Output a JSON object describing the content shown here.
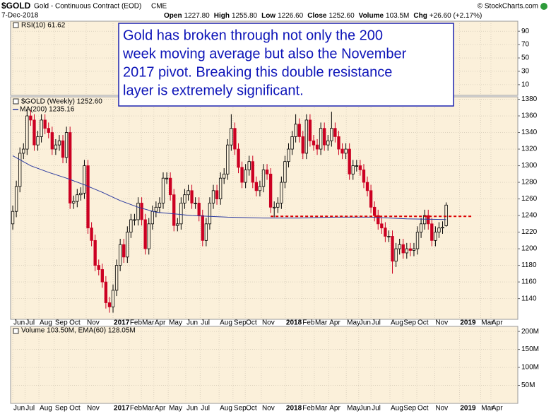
{
  "header": {
    "symbol": "$GOLD",
    "name": "Gold - Continuous Contract (EOD)",
    "exchange": "CME",
    "date": "7-Dec-2018",
    "quote": [
      {
        "label": "Open",
        "value": "1227.80"
      },
      {
        "label": "High",
        "value": "1255.80"
      },
      {
        "label": "Low",
        "value": "1226.60"
      },
      {
        "label": "Close",
        "value": "1252.60"
      },
      {
        "label": "Volume",
        "value": "103.5M"
      },
      {
        "label": "Chg",
        "value": "+26.60 (+2.17%)"
      }
    ],
    "credit": "© StockCharts.com"
  },
  "chart_data": [
    {
      "type": "indicator",
      "label": "RSI(10) 61.62",
      "ylim": [
        -6,
        105
      ],
      "yticks": [
        90,
        70,
        50,
        30,
        10
      ]
    },
    {
      "type": "candlestick",
      "legend": "$GOLD (Weekly) 1252.60",
      "up_color": "#000000",
      "down_color": "#cc0022",
      "grid": true,
      "ylim": [
        1115,
        1383
      ],
      "yticks": [
        1380,
        1360,
        1340,
        1320,
        1300,
        1280,
        1260,
        1240,
        1220,
        1200,
        1180,
        1160,
        1140
      ],
      "xlim": [
        -0.6,
        141
      ],
      "xticks": [
        {
          "value": 0,
          "label": "Jun"
        },
        {
          "value": 3.4,
          "label": "Jul"
        },
        {
          "value": 7.3,
          "label": "Aug"
        },
        {
          "value": 11.6,
          "label": "Sep"
        },
        {
          "value": 15.6,
          "label": "Oct"
        },
        {
          "value": 20.5,
          "label": "Nov"
        },
        {
          "value": 28,
          "label": "2017"
        },
        {
          "value": 32.5,
          "label": "Feb"
        },
        {
          "value": 35.9,
          "label": "Mar"
        },
        {
          "value": 39.4,
          "label": "Apr"
        },
        {
          "value": 43.4,
          "label": "May"
        },
        {
          "value": 48.3,
          "label": "Jun"
        },
        {
          "value": 52.3,
          "label": "Jul"
        },
        {
          "value": 57.6,
          "label": "Aug"
        },
        {
          "value": 61.5,
          "label": "Sep"
        },
        {
          "value": 64.9,
          "label": "Oct"
        },
        {
          "value": 69.4,
          "label": "Nov"
        },
        {
          "value": 76.1,
          "label": "2018"
        },
        {
          "value": 80.7,
          "label": "Feb"
        },
        {
          "value": 84.2,
          "label": "Mar"
        },
        {
          "value": 88.2,
          "label": "Apr"
        },
        {
          "value": 93.1,
          "label": "May"
        },
        {
          "value": 96.6,
          "label": "Jun"
        },
        {
          "value": 100,
          "label": "Jul"
        },
        {
          "value": 105.3,
          "label": "Aug"
        },
        {
          "value": 108.9,
          "label": "Sep"
        },
        {
          "value": 112.8,
          "label": "Oct"
        },
        {
          "value": 117.8,
          "label": "Nov"
        },
        {
          "value": 124.7,
          "label": "2019"
        },
        {
          "value": 130.6,
          "label": "Mar"
        },
        {
          "value": 133.5,
          "label": "Apr"
        }
      ],
      "candles": [
        [
          1230,
          1252,
          1223,
          1245
        ],
        [
          1245,
          1282,
          1238,
          1275
        ],
        [
          1275,
          1322,
          1268,
          1315
        ],
        [
          1315,
          1327,
          1308,
          1320
        ],
        [
          1320,
          1367,
          1313,
          1360
        ],
        [
          1360,
          1367,
          1348,
          1355
        ],
        [
          1355,
          1362,
          1318,
          1325
        ],
        [
          1325,
          1342,
          1318,
          1335
        ],
        [
          1335,
          1362,
          1328,
          1355
        ],
        [
          1355,
          1362,
          1338,
          1345
        ],
        [
          1345,
          1352,
          1333,
          1340
        ],
        [
          1340,
          1347,
          1313,
          1320
        ],
        [
          1320,
          1332,
          1313,
          1325
        ],
        [
          1325,
          1337,
          1318,
          1330
        ],
        [
          1330,
          1337,
          1303,
          1310
        ],
        [
          1310,
          1347,
          1303,
          1340
        ],
        [
          1340,
          1347,
          1248,
          1255
        ],
        [
          1255,
          1264,
          1248,
          1257
        ],
        [
          1257,
          1272,
          1250,
          1265
        ],
        [
          1265,
          1274,
          1258,
          1267
        ],
        [
          1267,
          1307,
          1260,
          1300
        ],
        [
          1300,
          1307,
          1218,
          1225
        ],
        [
          1225,
          1232,
          1203,
          1210
        ],
        [
          1210,
          1217,
          1173,
          1180
        ],
        [
          1180,
          1187,
          1168,
          1175
        ],
        [
          1175,
          1182,
          1153,
          1160
        ],
        [
          1160,
          1167,
          1128,
          1135
        ],
        [
          1135,
          1142,
          1123,
          1130
        ],
        [
          1130,
          1157,
          1123,
          1150
        ],
        [
          1150,
          1187,
          1143,
          1180
        ],
        [
          1180,
          1212,
          1173,
          1205
        ],
        [
          1205,
          1212,
          1183,
          1190
        ],
        [
          1190,
          1227,
          1183,
          1220
        ],
        [
          1220,
          1242,
          1213,
          1235
        ],
        [
          1235,
          1242,
          1228,
          1235
        ],
        [
          1235,
          1262,
          1228,
          1255
        ],
        [
          1255,
          1262,
          1228,
          1235
        ],
        [
          1235,
          1242,
          1193,
          1200
        ],
        [
          1200,
          1237,
          1193,
          1230
        ],
        [
          1230,
          1252,
          1223,
          1245
        ],
        [
          1245,
          1257,
          1238,
          1250
        ],
        [
          1250,
          1262,
          1243,
          1255
        ],
        [
          1255,
          1292,
          1248,
          1285
        ],
        [
          1285,
          1292,
          1278,
          1285
        ],
        [
          1285,
          1292,
          1258,
          1265
        ],
        [
          1265,
          1272,
          1221,
          1228
        ],
        [
          1228,
          1237,
          1221,
          1230
        ],
        [
          1230,
          1262,
          1223,
          1255
        ],
        [
          1255,
          1272,
          1248,
          1265
        ],
        [
          1265,
          1277,
          1258,
          1270
        ],
        [
          1270,
          1277,
          1248,
          1255
        ],
        [
          1255,
          1262,
          1248,
          1255
        ],
        [
          1255,
          1262,
          1233,
          1240
        ],
        [
          1240,
          1247,
          1203,
          1210
        ],
        [
          1210,
          1237,
          1203,
          1230
        ],
        [
          1230,
          1262,
          1223,
          1255
        ],
        [
          1255,
          1277,
          1248,
          1270
        ],
        [
          1270,
          1277,
          1253,
          1260
        ],
        [
          1260,
          1292,
          1253,
          1285
        ],
        [
          1285,
          1297,
          1278,
          1290
        ],
        [
          1290,
          1332,
          1283,
          1325
        ],
        [
          1325,
          1362,
          1318,
          1345
        ],
        [
          1345,
          1352,
          1313,
          1320
        ],
        [
          1320,
          1327,
          1291,
          1298
        ],
        [
          1298,
          1305,
          1273,
          1280
        ],
        [
          1280,
          1302,
          1273,
          1295
        ],
        [
          1295,
          1312,
          1288,
          1305
        ],
        [
          1305,
          1312,
          1273,
          1280
        ],
        [
          1280,
          1287,
          1263,
          1270
        ],
        [
          1270,
          1282,
          1263,
          1275
        ],
        [
          1275,
          1302,
          1268,
          1295
        ],
        [
          1295,
          1302,
          1283,
          1290
        ],
        [
          1290,
          1297,
          1243,
          1250
        ],
        [
          1250,
          1257,
          1238,
          1250
        ],
        [
          1250,
          1262,
          1243,
          1255
        ],
        [
          1255,
          1287,
          1248,
          1280
        ],
        [
          1280,
          1312,
          1273,
          1305
        ],
        [
          1305,
          1327,
          1298,
          1320
        ],
        [
          1320,
          1342,
          1313,
          1335
        ],
        [
          1335,
          1362,
          1328,
          1350
        ],
        [
          1350,
          1357,
          1328,
          1335
        ],
        [
          1335,
          1342,
          1308,
          1315
        ],
        [
          1315,
          1362,
          1308,
          1355
        ],
        [
          1355,
          1362,
          1323,
          1330
        ],
        [
          1330,
          1337,
          1318,
          1325
        ],
        [
          1325,
          1332,
          1313,
          1320
        ],
        [
          1320,
          1352,
          1313,
          1345
        ],
        [
          1345,
          1352,
          1318,
          1325
        ],
        [
          1325,
          1337,
          1318,
          1330
        ],
        [
          1330,
          1365,
          1323,
          1345
        ],
        [
          1345,
          1352,
          1328,
          1335
        ],
        [
          1335,
          1342,
          1313,
          1320
        ],
        [
          1320,
          1327,
          1308,
          1315
        ],
        [
          1315,
          1327,
          1308,
          1320
        ],
        [
          1320,
          1327,
          1283,
          1290
        ],
        [
          1290,
          1307,
          1283,
          1300
        ],
        [
          1300,
          1307,
          1293,
          1300
        ],
        [
          1300,
          1307,
          1288,
          1295
        ],
        [
          1295,
          1302,
          1273,
          1280
        ],
        [
          1280,
          1287,
          1263,
          1270
        ],
        [
          1270,
          1277,
          1243,
          1250
        ],
        [
          1250,
          1257,
          1233,
          1240
        ],
        [
          1240,
          1247,
          1223,
          1230
        ],
        [
          1230,
          1237,
          1218,
          1225
        ],
        [
          1225,
          1232,
          1208,
          1215
        ],
        [
          1215,
          1222,
          1208,
          1215
        ],
        [
          1215,
          1222,
          1170,
          1185
        ],
        [
          1185,
          1207,
          1178,
          1200
        ],
        [
          1200,
          1212,
          1193,
          1205
        ],
        [
          1205,
          1212,
          1188,
          1195
        ],
        [
          1195,
          1207,
          1188,
          1200
        ],
        [
          1200,
          1207,
          1191,
          1198
        ],
        [
          1198,
          1207,
          1191,
          1200
        ],
        [
          1200,
          1227,
          1193,
          1220
        ],
        [
          1220,
          1237,
          1213,
          1230
        ],
        [
          1230,
          1247,
          1223,
          1240
        ],
        [
          1240,
          1247,
          1223,
          1230
        ],
        [
          1230,
          1237,
          1203,
          1210
        ],
        [
          1210,
          1227,
          1203,
          1220
        ],
        [
          1220,
          1232,
          1213,
          1225
        ],
        [
          1225,
          1233,
          1218,
          1226
        ],
        [
          1227.8,
          1255.8,
          1226.6,
          1252.6
        ]
      ],
      "series": [
        {
          "name": "MA(200) 1235.16",
          "color": "#2b3aa0",
          "x": [
            0,
            5,
            10,
            15,
            20,
            25,
            30,
            35,
            40,
            50,
            60,
            70,
            80,
            90,
            100,
            110,
            121
          ],
          "values": [
            1312,
            1300,
            1292,
            1285,
            1277,
            1268,
            1258,
            1250,
            1244,
            1240,
            1238,
            1237,
            1237,
            1238,
            1238,
            1236,
            1235.16
          ]
        }
      ],
      "lines": [
        {
          "color": "#dd0000",
          "value": 1239,
          "x": [
            72,
            128
          ]
        }
      ],
      "annotation": [
        "Gold has broken through not only the 200",
        "week moving average but also the November",
        "2017 pivot. Breaking this double resistance",
        "layer is extremely significant."
      ]
    },
    {
      "type": "volume",
      "label": "Volume 103.50M, EMA(60) 128.05M",
      "ylim": [
        0,
        214000000
      ],
      "yticks": [
        {
          "value": 200000000,
          "label": "200M"
        },
        {
          "value": 150000000,
          "label": "150M"
        },
        {
          "value": 100000000,
          "label": "100M"
        },
        {
          "value": 50000000,
          "label": "50M"
        }
      ]
    }
  ]
}
